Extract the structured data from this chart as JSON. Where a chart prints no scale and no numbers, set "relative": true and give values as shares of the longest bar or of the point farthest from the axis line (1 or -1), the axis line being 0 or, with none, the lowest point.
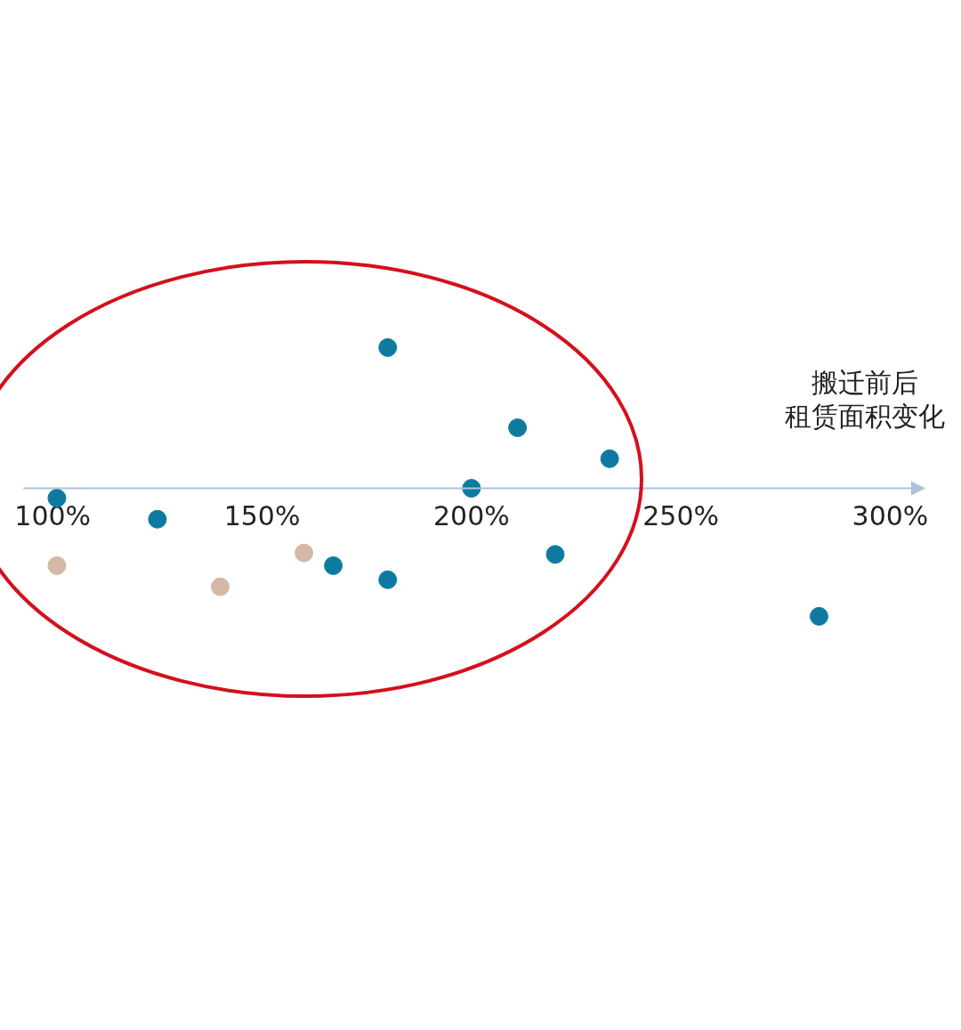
{
  "chart_data": {
    "type": "scatter",
    "relative": true,
    "xlabel": "搬迁前后租赁面积变化",
    "xlim": [
      93,
      305
    ],
    "xticks": [
      {
        "value": 100,
        "label": "100%"
      },
      {
        "value": 150,
        "label": "150%"
      },
      {
        "value": 200,
        "label": "200%"
      },
      {
        "value": 250,
        "label": "250%"
      },
      {
        "value": 300,
        "label": "300%"
      }
    ],
    "grid": false,
    "legend": false,
    "marker": "circle",
    "tick_labels": "x",
    "series": [
      {
        "color": "#0e7aa0",
        "x": [
          101,
          125,
          180,
          211,
          233,
          200,
          220,
          167,
          180,
          283
        ],
        "values": [
          -0.07,
          -0.22,
          1,
          0.43,
          0.21,
          0,
          -0.47,
          -0.55,
          -0.65,
          -0.91
        ]
      },
      {
        "color": "#d4b9a6",
        "x": [
          101,
          140,
          160
        ],
        "values": [
          -0.55,
          -0.7,
          -0.46
        ]
      }
    ]
  }
}
